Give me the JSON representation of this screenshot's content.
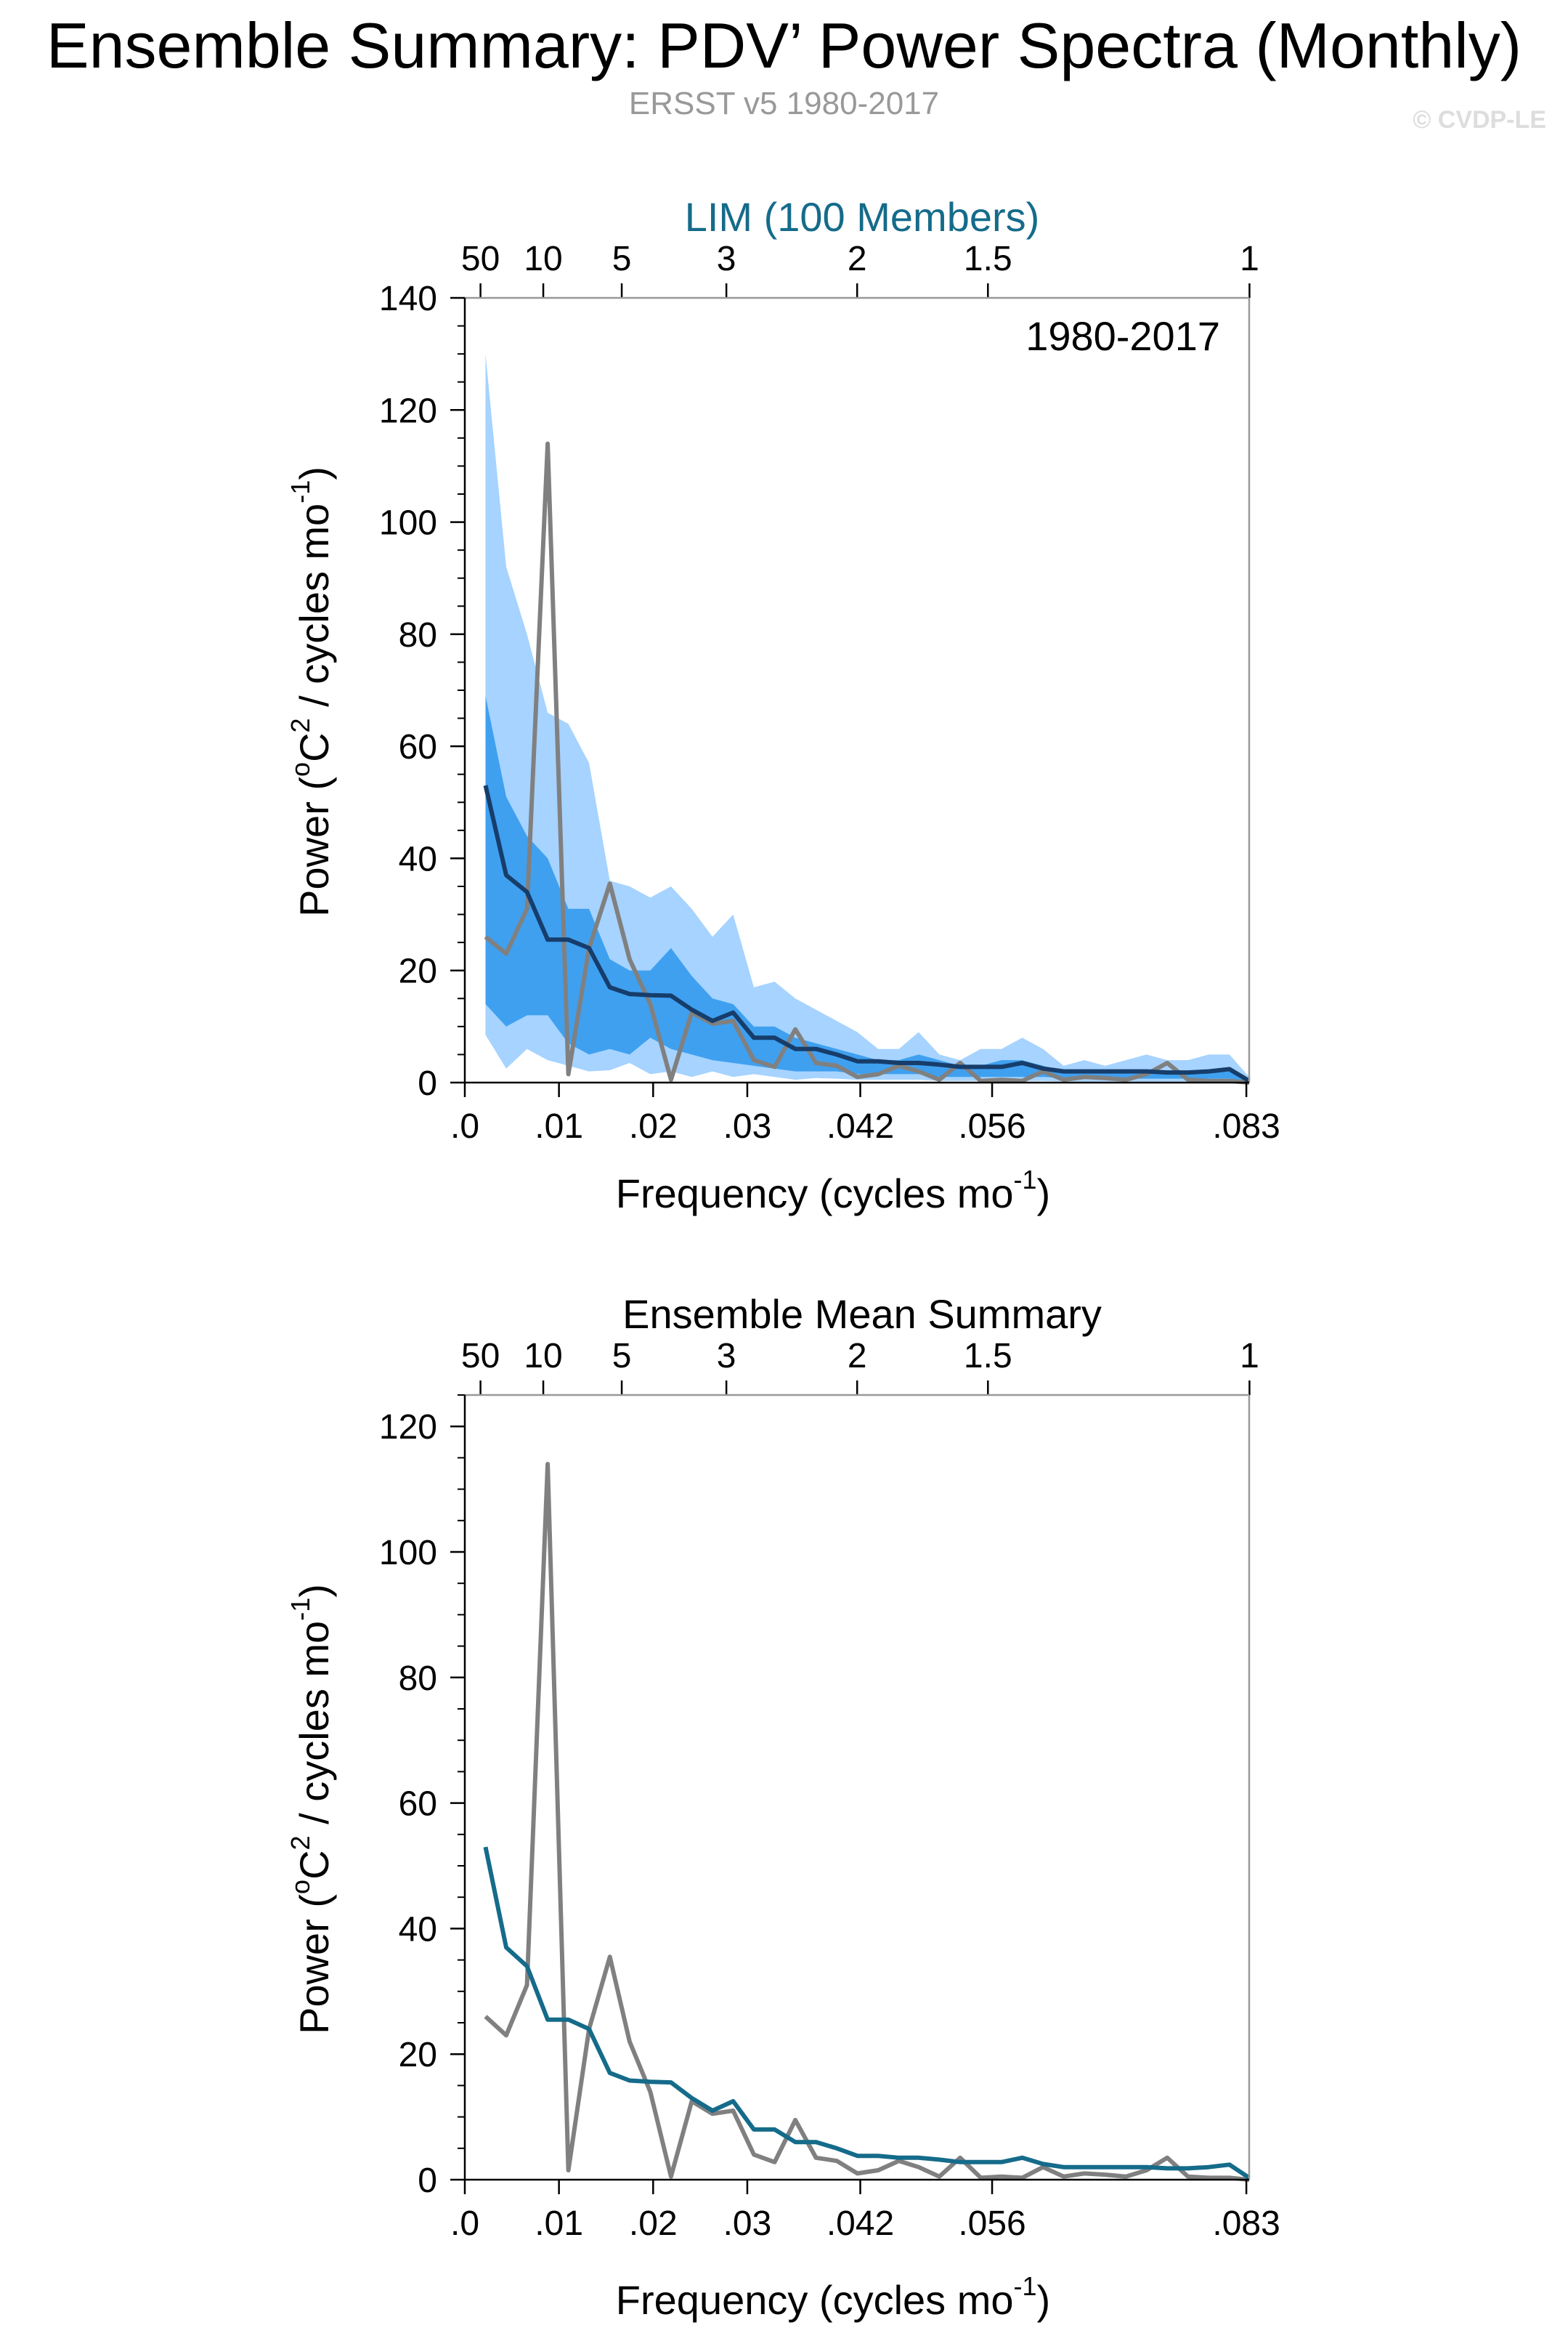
{
  "page": {
    "title": "Ensemble Summary: PDV’ Power Spectra (Monthly)",
    "subtitle": "ERSST v5 1980-2017",
    "copyright": "© CVDP-LE"
  },
  "colors": {
    "band_outer": "#a6d3ff",
    "band_inner": "#3fa0f0",
    "ensemble_line_top": "#173d6b",
    "ensemble_line_bottom": "#156b8a",
    "obs_line": "#808080",
    "title_accent": "#156b8a",
    "axis": "#000000"
  },
  "chart_data": [
    {
      "type": "area",
      "title": "LIM (100 Members)",
      "annotation": "1980-2017",
      "xlabel": "Frequency (cycles mo",
      "xlabel_sup": "-1",
      "xlabel_end": ")",
      "ylabel": "Power (",
      "ylabel_sup1": "o",
      "ylabel_mid": "C",
      "ylabel_sup2": "2",
      "ylabel_mid2": " / cycles mo",
      "ylabel_sup3": "-1",
      "ylabel_end": ")",
      "xlim": [
        0,
        0.0833
      ],
      "ylim": [
        0,
        140
      ],
      "yticks": [
        0,
        20,
        40,
        60,
        80,
        100,
        120,
        140
      ],
      "xtick_values": [
        0.0,
        0.01,
        0.02,
        0.03,
        0.042,
        0.056,
        0.083
      ],
      "xtick_labels": [
        ".0",
        ".01",
        ".02",
        ".03",
        ".042",
        ".056",
        ".083"
      ],
      "period_ticks": [
        50,
        10,
        5,
        3,
        2,
        1.5,
        1
      ],
      "period_labels": [
        "50",
        "10",
        "5",
        "3",
        "2",
        "1.5",
        "1"
      ],
      "x": [
        0.0022,
        0.0044,
        0.0066,
        0.0088,
        0.011,
        0.0132,
        0.0154,
        0.0175,
        0.0197,
        0.0219,
        0.0241,
        0.0263,
        0.0285,
        0.0307,
        0.0329,
        0.0351,
        0.0373,
        0.0395,
        0.0417,
        0.0439,
        0.0461,
        0.0482,
        0.0504,
        0.0526,
        0.0548,
        0.057,
        0.0592,
        0.0614,
        0.0636,
        0.0658,
        0.068,
        0.0702,
        0.0724,
        0.0746,
        0.0768,
        0.079,
        0.0812,
        0.0833
      ],
      "series": [
        {
          "name": "",
          "role": "p97.5",
          "values": [
            130,
            92,
            80,
            66,
            64,
            57,
            36,
            35,
            33,
            35,
            31,
            26,
            30,
            17,
            18,
            15,
            13,
            11,
            9,
            6,
            6,
            9,
            5,
            4,
            6,
            6,
            8,
            6,
            3,
            4,
            3,
            4,
            5,
            4,
            4,
            5,
            5,
            1
          ]
        },
        {
          "name": "",
          "role": "p84",
          "values": [
            69,
            51,
            44,
            40,
            31,
            31,
            22,
            20,
            20,
            24,
            19,
            15,
            14,
            10,
            10,
            8,
            7,
            6,
            5,
            4,
            4,
            5,
            4,
            3,
            3,
            4,
            4,
            3,
            2,
            2,
            2,
            2,
            2,
            2,
            2,
            2,
            2,
            0.5
          ]
        },
        {
          "name": "",
          "role": "mean",
          "values": [
            53,
            37,
            34,
            25.5,
            25.5,
            24,
            17,
            15.8,
            15.6,
            15.5,
            13,
            11,
            12.5,
            8,
            8,
            6,
            6,
            5,
            3.8,
            3.8,
            3.5,
            3.5,
            3.2,
            2.8,
            2.8,
            2.8,
            3.5,
            2.5,
            2,
            2,
            2,
            2,
            2,
            1.8,
            1.8,
            2,
            2.4,
            0.3
          ]
        },
        {
          "name": "",
          "role": "p16",
          "values": [
            14,
            10,
            12,
            12,
            7,
            5,
            6,
            5,
            8,
            6,
            5,
            4,
            3.5,
            3,
            2.5,
            2,
            2,
            2,
            1.5,
            1.5,
            1.5,
            1.5,
            1,
            1,
            1,
            1,
            1,
            1,
            0.8,
            0.8,
            0.7,
            0.7,
            0.7,
            0.7,
            0.7,
            0.7,
            0.7,
            0.2
          ]
        },
        {
          "name": "",
          "role": "p2.5",
          "values": [
            8.5,
            2.5,
            6,
            4,
            3,
            2,
            2.2,
            3.5,
            1.5,
            2,
            1,
            2,
            1,
            1.5,
            1,
            0.5,
            0.8,
            0.7,
            0.5,
            0.5,
            0.5,
            0.5,
            0.3,
            0.3,
            0.3,
            0.3,
            0.3,
            0.3,
            0.2,
            0.2,
            0.2,
            0.2,
            0.2,
            0.2,
            0.2,
            0.2,
            0.2,
            0
          ]
        },
        {
          "name": "",
          "role": "observed",
          "values": [
            26,
            23,
            31,
            114,
            1.5,
            24,
            35.5,
            22,
            14,
            0.5,
            12.5,
            10.5,
            11,
            4,
            2.8,
            9.5,
            3.5,
            3,
            1,
            1.5,
            3,
            2,
            0.5,
            3.5,
            0.3,
            0.5,
            0.3,
            2,
            0.5,
            1,
            0.8,
            0.5,
            1.5,
            3.5,
            0.5,
            0.3,
            0.3,
            0
          ]
        }
      ]
    },
    {
      "type": "line",
      "title": "Ensemble Mean Summary",
      "xlabel": "Frequency (cycles mo",
      "xlabel_sup": "-1",
      "xlabel_end": ")",
      "ylabel": "Power (",
      "ylabel_sup1": "o",
      "ylabel_mid": "C",
      "ylabel_sup2": "2",
      "ylabel_mid2": " / cycles mo",
      "ylabel_sup3": "-1",
      "ylabel_end": ")",
      "xlim": [
        0,
        0.0833
      ],
      "ylim": [
        0,
        125
      ],
      "yticks": [
        0,
        20,
        40,
        60,
        80,
        100,
        120
      ],
      "xtick_values": [
        0.0,
        0.01,
        0.02,
        0.03,
        0.042,
        0.056,
        0.083
      ],
      "xtick_labels": [
        ".0",
        ".01",
        ".02",
        ".03",
        ".042",
        ".056",
        ".083"
      ],
      "period_ticks": [
        50,
        10,
        5,
        3,
        2,
        1.5,
        1
      ],
      "period_labels": [
        "50",
        "10",
        "5",
        "3",
        "2",
        "1.5",
        "1"
      ],
      "x": [
        0.0022,
        0.0044,
        0.0066,
        0.0088,
        0.011,
        0.0132,
        0.0154,
        0.0175,
        0.0197,
        0.0219,
        0.0241,
        0.0263,
        0.0285,
        0.0307,
        0.0329,
        0.0351,
        0.0373,
        0.0395,
        0.0417,
        0.0439,
        0.0461,
        0.0482,
        0.0504,
        0.0526,
        0.0548,
        0.057,
        0.0592,
        0.0614,
        0.0636,
        0.0658,
        0.068,
        0.0702,
        0.0724,
        0.0746,
        0.0768,
        0.079,
        0.0812,
        0.0833
      ],
      "series": [
        {
          "name": "",
          "role": "mean",
          "values": [
            53,
            37,
            34,
            25.5,
            25.5,
            24,
            17,
            15.8,
            15.6,
            15.5,
            13,
            11,
            12.5,
            8,
            8,
            6,
            6,
            5,
            3.8,
            3.8,
            3.5,
            3.5,
            3.2,
            2.8,
            2.8,
            2.8,
            3.5,
            2.5,
            2,
            2,
            2,
            2,
            2,
            1.8,
            1.8,
            2,
            2.4,
            0.3
          ]
        },
        {
          "name": "",
          "role": "observed",
          "values": [
            26,
            23,
            31,
            114,
            1.5,
            24,
            35.5,
            22,
            14,
            0.5,
            12.5,
            10.5,
            11,
            4,
            2.8,
            9.5,
            3.5,
            3,
            1,
            1.5,
            3,
            2,
            0.5,
            3.5,
            0.3,
            0.5,
            0.3,
            2,
            0.5,
            1,
            0.8,
            0.5,
            1.5,
            3.5,
            0.5,
            0.3,
            0.3,
            0
          ]
        }
      ]
    }
  ]
}
